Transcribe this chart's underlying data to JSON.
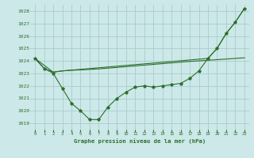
{
  "title": "Graphe pression niveau de la mer (hPa)",
  "background_color": "#cce8e8",
  "grid_color": "#aacccc",
  "line_color": "#2d6e2d",
  "xlim": [
    -0.5,
    23.5
  ],
  "ylim": [
    1018.5,
    1028.5
  ],
  "yticks": [
    1019,
    1020,
    1021,
    1022,
    1023,
    1024,
    1025,
    1026,
    1027,
    1028
  ],
  "xticks": [
    0,
    1,
    2,
    3,
    4,
    5,
    6,
    7,
    8,
    9,
    10,
    11,
    12,
    13,
    14,
    15,
    16,
    17,
    18,
    19,
    20,
    21,
    22,
    23
  ],
  "series1_x": [
    0,
    1,
    2,
    3,
    4,
    5,
    6,
    7,
    8,
    9,
    10,
    11,
    12,
    13,
    14,
    15,
    16,
    17,
    18,
    19,
    20,
    21,
    22,
    23
  ],
  "series1_y": [
    1024.2,
    1023.4,
    1023.0,
    1021.8,
    1020.6,
    1020.0,
    1019.3,
    1019.3,
    1020.3,
    1021.0,
    1021.5,
    1021.9,
    1022.0,
    1021.9,
    1022.0,
    1022.1,
    1022.2,
    1022.6,
    1023.2,
    1024.2,
    1025.0,
    1026.2,
    1027.1,
    1028.2
  ],
  "series2_x": [
    0,
    1,
    2,
    3,
    4,
    5,
    6,
    7,
    8,
    9,
    10,
    11,
    12,
    13,
    14,
    15,
    16,
    17,
    18,
    19,
    20,
    21,
    22,
    23
  ],
  "series2_y": [
    1024.2,
    1023.4,
    1023.1,
    1023.2,
    1023.25,
    1023.28,
    1023.32,
    1023.36,
    1023.42,
    1023.48,
    1023.54,
    1023.6,
    1023.66,
    1023.72,
    1023.78,
    1023.84,
    1023.9,
    1023.96,
    1024.0,
    1024.05,
    1024.1,
    1024.15,
    1024.2,
    1024.25
  ],
  "series3_x": [
    0,
    2,
    3,
    19,
    20,
    21,
    22,
    23
  ],
  "series3_y": [
    1024.2,
    1023.1,
    1023.2,
    1024.2,
    1025.0,
    1026.2,
    1027.1,
    1028.2
  ]
}
